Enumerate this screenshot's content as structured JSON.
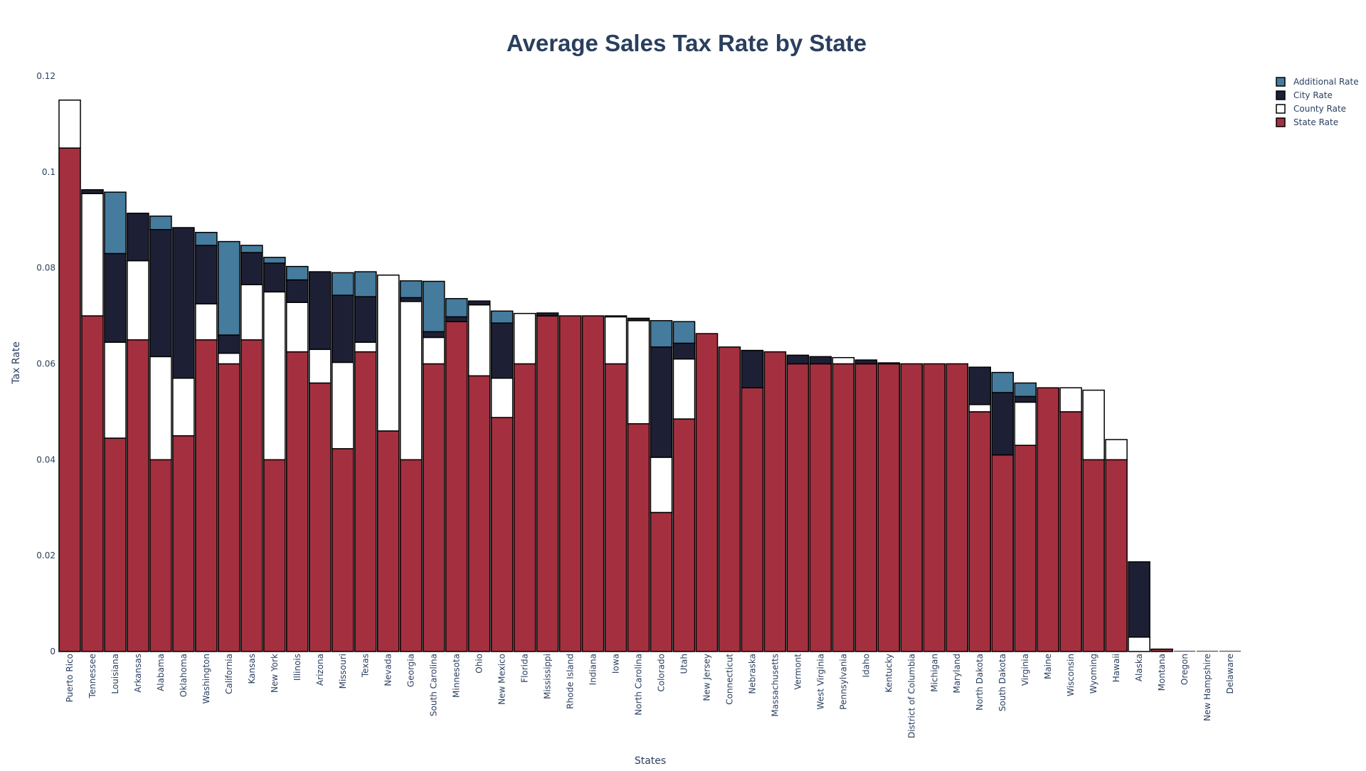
{
  "chart_data": {
    "type": "bar",
    "stacked": true,
    "title": "Average Sales Tax Rate by State",
    "xlabel": "States",
    "ylabel": "Tax Rate",
    "ylim": [
      0,
      0.12
    ],
    "yticks": [
      0,
      0.02,
      0.04,
      0.06,
      0.08,
      0.1,
      0.12
    ],
    "ytick_labels": [
      "0",
      "0.02",
      "0.04",
      "0.06",
      "0.08",
      "0.1",
      "0.12"
    ],
    "legend_position": "top-right",
    "categories": [
      "Puerto Rico",
      "Tennessee",
      "Louisiana",
      "Arkansas",
      "Alabama",
      "Oklahoma",
      "Washington",
      "California",
      "Kansas",
      "New York",
      "Illinois",
      "Arizona",
      "Missouri",
      "Texas",
      "Nevada",
      "Georgia",
      "South Carolina",
      "Minnesota",
      "Ohio",
      "New Mexico",
      "Florida",
      "Mississippi",
      "Rhode Island",
      "Indiana",
      "Iowa",
      "North Carolina",
      "Colorado",
      "Utah",
      "New Jersey",
      "Connecticut",
      "Nebraska",
      "Massachusetts",
      "Vermont",
      "West Virginia",
      "Pennsylvania",
      "Idaho",
      "Kentucky",
      "District of Columbia",
      "Michigan",
      "Maryland",
      "North Dakota",
      "South Dakota",
      "Virginia",
      "Maine",
      "Wisconsin",
      "Wyoming",
      "Hawaii",
      "Alaska",
      "Montana",
      "Oregon",
      "New Hampshire",
      "Delaware"
    ],
    "series": [
      {
        "name": "State Rate",
        "color": "#a4303f",
        "values": [
          0.105,
          0.07,
          0.0445,
          0.065,
          0.04,
          0.045,
          0.065,
          0.06,
          0.065,
          0.04,
          0.0625,
          0.056,
          0.0423,
          0.0625,
          0.046,
          0.04,
          0.06,
          0.0688,
          0.0575,
          0.0488,
          0.06,
          0.07,
          0.07,
          0.07,
          0.06,
          0.0475,
          0.029,
          0.0485,
          0.0663,
          0.0635,
          0.055,
          0.0625,
          0.06,
          0.06,
          0.06,
          0.06,
          0.06,
          0.06,
          0.06,
          0.06,
          0.05,
          0.041,
          0.043,
          0.055,
          0.05,
          0.04,
          0.04,
          0,
          0.0005,
          0,
          0,
          0
        ]
      },
      {
        "name": "County Rate",
        "color": "#ffffff",
        "values": [
          0.01,
          0.0255,
          0.02,
          0.0165,
          0.0215,
          0.012,
          0.0075,
          0.0022,
          0.0115,
          0.035,
          0.0103,
          0.007,
          0.018,
          0.002,
          0.0325,
          0.033,
          0.0055,
          0,
          0.0148,
          0.0082,
          0.0105,
          0,
          0,
          0,
          0.0098,
          0.0215,
          0.0115,
          0.0125,
          0,
          0,
          0,
          0,
          0,
          0,
          0.0013,
          0,
          0,
          0,
          0,
          0,
          0.0015,
          0,
          0.009,
          0,
          0.005,
          0.0145,
          0.0042,
          0.003,
          0,
          0,
          0,
          0
        ]
      },
      {
        "name": "City Rate",
        "color": "#1d2035",
        "values": [
          0,
          0.0008,
          0.0185,
          0.0099,
          0.0265,
          0.0314,
          0.0122,
          0.0038,
          0.0067,
          0.006,
          0.0047,
          0.0162,
          0.014,
          0.0095,
          0,
          0.0008,
          0.0012,
          0.001,
          0.0008,
          0.0115,
          0,
          0.0006,
          0,
          0,
          0.0002,
          0.0005,
          0.023,
          0.0033,
          0,
          0,
          0.0078,
          0,
          0.0018,
          0.0015,
          0,
          0.0008,
          0.0002,
          0,
          0,
          0,
          0.0078,
          0.013,
          0.0012,
          0,
          0,
          0,
          0,
          0.0157,
          0,
          0,
          0,
          0
        ]
      },
      {
        "name": "Additional Rate",
        "color": "#457b9d",
        "values": [
          0,
          0,
          0.0128,
          0,
          0.0028,
          0,
          0.0027,
          0.0195,
          0.0015,
          0.0012,
          0.0028,
          0,
          0.0047,
          0.0052,
          0,
          0.0035,
          0.0105,
          0.0038,
          0,
          0.0025,
          0,
          0,
          0,
          0,
          0,
          0,
          0.0055,
          0.0045,
          0,
          0,
          0,
          0,
          0,
          0,
          0,
          0,
          0,
          0,
          0,
          0,
          0,
          0.0042,
          0.0028,
          0,
          0,
          0,
          0,
          0,
          0,
          0,
          0,
          0
        ]
      }
    ]
  }
}
